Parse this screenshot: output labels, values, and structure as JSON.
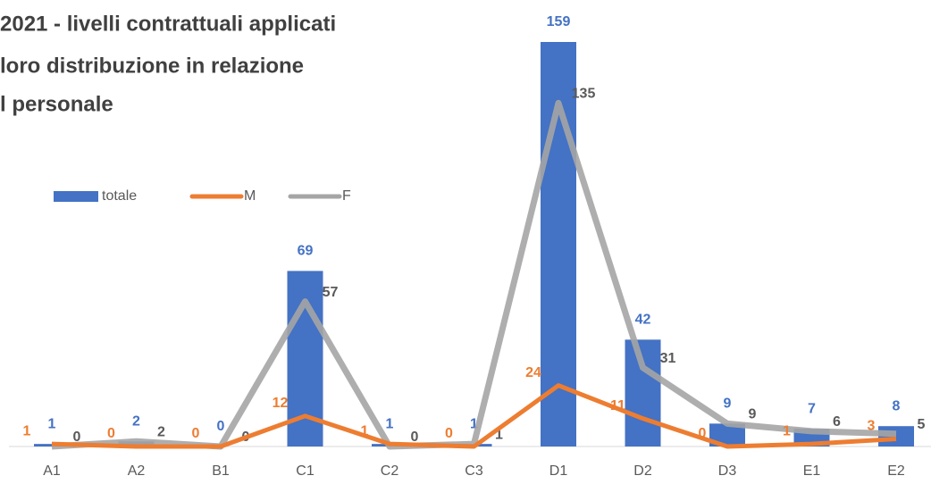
{
  "chart_data": {
    "type": "bar-line",
    "title": [
      "2021 - livelli contrattuali applicati",
      "loro distribuzione in relazione",
      "l personale"
    ],
    "categories": [
      "A1",
      "A2",
      "B1",
      "C1",
      "C2",
      "C3",
      "D1",
      "D2",
      "D3",
      "E1",
      "E2"
    ],
    "series": [
      {
        "name": "totale",
        "color": "#4472c4",
        "kind": "bar",
        "values": [
          1,
          2,
          0,
          69,
          1,
          1,
          159,
          42,
          9,
          7,
          8
        ]
      },
      {
        "name": "M",
        "color": "#ed7d31",
        "kind": "line",
        "values": [
          1,
          0,
          0,
          12,
          1,
          0,
          24,
          11,
          0,
          1,
          3
        ]
      },
      {
        "name": "F",
        "color": "#a5a5a5",
        "kind": "line",
        "values": [
          0,
          2,
          0,
          57,
          0,
          1,
          135,
          31,
          9,
          6,
          5
        ]
      }
    ],
    "legend": "top-left"
  }
}
